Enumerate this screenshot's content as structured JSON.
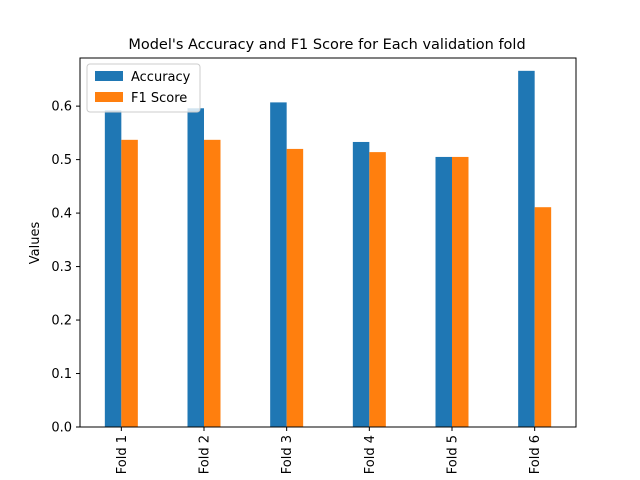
{
  "chart_data": {
    "type": "bar",
    "title": "Model's Accuracy and F1 Score for Each validation fold",
    "xlabel": "",
    "ylabel": "Values",
    "categories": [
      "Fold 1",
      "Fold 2",
      "Fold 3",
      "Fold 4",
      "Fold 5",
      "Fold 6"
    ],
    "series": [
      {
        "name": "Accuracy",
        "color": "#1f77b4",
        "values": [
          0.592,
          0.596,
          0.607,
          0.533,
          0.505,
          0.666
        ]
      },
      {
        "name": "F1 Score",
        "color": "#ff7f0e",
        "values": [
          0.537,
          0.537,
          0.52,
          0.514,
          0.505,
          0.411
        ]
      }
    ],
    "ylim": [
      0,
      0.69
    ],
    "yticks": [
      0.0,
      0.1,
      0.2,
      0.3,
      0.4,
      0.5,
      0.6
    ],
    "ytick_labels": [
      "0.0",
      "0.1",
      "0.2",
      "0.3",
      "0.4",
      "0.5",
      "0.6"
    ],
    "grid": false,
    "legend_position": "top-left",
    "xtick_rotation": "vertical"
  }
}
